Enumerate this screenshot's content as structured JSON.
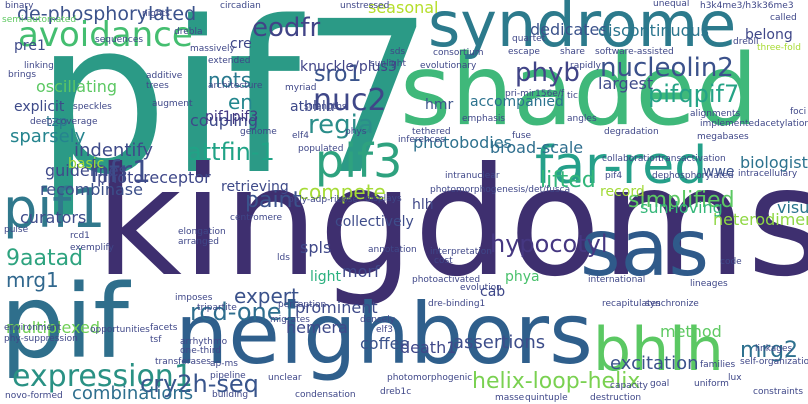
{
  "words": [
    {
      "text": "pif7",
      "color": "#2b9a86"
    },
    {
      "text": "kingdoms",
      "color": "#3e2f6f"
    },
    {
      "text": "shaded",
      "color": "#3fb87a"
    },
    {
      "text": "pif",
      "color": "#2f6f8c"
    },
    {
      "text": "neighbors",
      "color": "#2f5f8c"
    },
    {
      "text": "syndrome",
      "color": "#2c7a8c"
    },
    {
      "text": "sas",
      "color": "#2f5a8a"
    },
    {
      "text": "far-red",
      "color": "#25a08a"
    },
    {
      "text": "bhlh",
      "color": "#5bc863"
    },
    {
      "text": "pif1",
      "color": "#30788c"
    },
    {
      "text": "avoidance",
      "color": "#44be70"
    },
    {
      "text": "pif3",
      "color": "#2ea27f"
    },
    {
      "text": "expression1",
      "color": "#2a9184"
    },
    {
      "text": "nucleolin2",
      "color": "#3b518b"
    },
    {
      "text": "pifqpif7",
      "color": "#25a386"
    },
    {
      "text": "nuc2",
      "color": "#3f4788"
    },
    {
      "text": "phyb",
      "color": "#414487"
    },
    {
      "text": "regia",
      "color": "#2b8d8a"
    },
    {
      "text": "hfr1",
      "color": "#3d4e8a"
    },
    {
      "text": "attfin-1",
      "color": "#20a386"
    },
    {
      "text": "eodfr",
      "color": "#414487"
    },
    {
      "text": "de-phosphorylated",
      "color": "#3b528b"
    },
    {
      "text": "hypocotyl",
      "color": "#453781"
    },
    {
      "text": "rcd-one1",
      "color": "#2e6e8e"
    },
    {
      "text": "expert",
      "color": "#3b528b"
    },
    {
      "text": "cry2h-seq",
      "color": "#39558c"
    },
    {
      "text": "helix-loop-helix",
      "color": "#7ad151"
    },
    {
      "text": "simplified",
      "color": "#5cc863"
    },
    {
      "text": "mrg2",
      "color": "#2d708e"
    },
    {
      "text": "excitation",
      "color": "#3b528b"
    },
    {
      "text": "9aatad",
      "color": "#2ea37f"
    },
    {
      "text": "mrg1",
      "color": "#31688e"
    },
    {
      "text": "sro1",
      "color": "#3a548c"
    },
    {
      "text": "nots",
      "color": "#29798e"
    },
    {
      "text": "en",
      "color": "#24878e"
    },
    {
      "text": "compete",
      "color": "#a5db36"
    },
    {
      "text": "paint",
      "color": "#3b528b"
    },
    {
      "text": "lifted",
      "color": "#32b67a"
    },
    {
      "text": "indentify",
      "color": "#3e4a89"
    },
    {
      "text": "combinations",
      "color": "#2e6f8e"
    },
    {
      "text": "assertions",
      "color": "#3d4d8a"
    },
    {
      "text": "sparsely",
      "color": "#25848e"
    },
    {
      "text": "recombinase",
      "color": "#3c4f8a"
    },
    {
      "text": "guidelines",
      "color": "#3e4989"
    },
    {
      "text": "method",
      "color": "#5ec962"
    },
    {
      "text": "photobodies",
      "color": "#2d718e"
    },
    {
      "text": "visualizing",
      "color": "#2a768e"
    },
    {
      "text": "biologist",
      "color": "#2c728e"
    },
    {
      "text": "broad-scale",
      "color": "#2e6e8e"
    },
    {
      "text": "heterodimerization",
      "color": "#8fd744"
    },
    {
      "text": "coupling",
      "color": "#3e4989"
    },
    {
      "text": "seasonal",
      "color": "#b5de2b"
    },
    {
      "text": "dedicates",
      "color": "#3b528b"
    },
    {
      "text": "discontinuous",
      "color": "#2b758e"
    },
    {
      "text": "largest",
      "color": "#3e4a89"
    },
    {
      "text": "coffee",
      "color": "#3b528b"
    },
    {
      "text": "hemera",
      "color": "#3e4989"
    },
    {
      "text": "death1",
      "color": "#3f4788"
    },
    {
      "text": "sun-loving",
      "color": "#35b779"
    },
    {
      "text": "prominent",
      "color": "#3e4a89"
    },
    {
      "text": "photoreceptor",
      "color": "#3f4889"
    },
    {
      "text": "oscillating",
      "color": "#5cc863"
    },
    {
      "text": "multiplexed",
      "color": "#70cf57"
    },
    {
      "text": "curators",
      "color": "#3e4c8a"
    },
    {
      "text": "spls",
      "color": "#3f4788"
    },
    {
      "text": "morf",
      "color": "#3f4788"
    },
    {
      "text": "atbhlh",
      "color": "#3e4989"
    },
    {
      "text": "knuckle/plus3",
      "color": "#414487"
    },
    {
      "text": "hmr",
      "color": "#3b528b"
    },
    {
      "text": "pif1pif3",
      "color": "#443983"
    },
    {
      "text": "cre",
      "color": "#3f4788"
    },
    {
      "text": "pre1",
      "color": "#3e4a89"
    },
    {
      "text": "basic",
      "color": "#a0da39"
    },
    {
      "text": "explicit",
      "color": "#3e4a89"
    },
    {
      "text": "accompanied",
      "color": "#2c728e"
    },
    {
      "text": "collectively",
      "color": "#3e4c8a"
    },
    {
      "text": "light",
      "color": "#2ab07f"
    },
    {
      "text": "cab",
      "color": "#3f4889"
    },
    {
      "text": "phya",
      "color": "#4ac16d"
    },
    {
      "text": "hlh",
      "color": "#3f4788"
    },
    {
      "text": "record",
      "color": "#a2da37"
    },
    {
      "text": "wwe",
      "color": "#3b528b"
    },
    {
      "text": "belong",
      "color": "#3f4788"
    },
    {
      "text": "retrieving",
      "color": "#3e4a89"
    },
    {
      "text": "tzp",
      "color": "#2a778e"
    },
    {
      "text": "unequal",
      "color": "#3f4788"
    },
    {
      "text": "circadian",
      "color": "#3e4989"
    },
    {
      "text": "unstressed",
      "color": "#3f4788"
    },
    {
      "text": "nights",
      "color": "#3f4788"
    },
    {
      "text": "drebla",
      "color": "#3f4788"
    },
    {
      "text": "massively",
      "color": "#3f4788"
    },
    {
      "text": "extended",
      "color": "#3f4788"
    },
    {
      "text": "sunlight",
      "color": "#3f4788"
    },
    {
      "text": "sds",
      "color": "#3f4788"
    },
    {
      "text": "consortium",
      "color": "#3f4788"
    },
    {
      "text": "escape",
      "color": "#3f4788"
    },
    {
      "text": "share",
      "color": "#3f4788"
    },
    {
      "text": "software-assisted",
      "color": "#3f4788"
    },
    {
      "text": "drebli",
      "color": "#3f4788"
    },
    {
      "text": "three-fold",
      "color": "#a8db34"
    },
    {
      "text": "called",
      "color": "#3f4788"
    },
    {
      "text": "binary",
      "color": "#3f4788"
    },
    {
      "text": "semi-automated",
      "color": "#5ec962"
    },
    {
      "text": "sequences",
      "color": "#3f4788"
    },
    {
      "text": "additive",
      "color": "#3f4788"
    },
    {
      "text": "trees",
      "color": "#3f4788"
    },
    {
      "text": "augment",
      "color": "#3f4788"
    },
    {
      "text": "architecture",
      "color": "#3f4788"
    },
    {
      "text": "myriad",
      "color": "#3f4788"
    },
    {
      "text": "strengths",
      "color": "#3f4788"
    },
    {
      "text": "elf4",
      "color": "#3f4788"
    },
    {
      "text": "phys",
      "color": "#3f4788"
    },
    {
      "text": "evolutionary",
      "color": "#3f4788"
    },
    {
      "text": "quartet",
      "color": "#3f4788"
    },
    {
      "text": "rapidly",
      "color": "#3f4788"
    },
    {
      "text": "tic",
      "color": "#3f4788"
    },
    {
      "text": "emphasis",
      "color": "#3f4788"
    },
    {
      "text": "pri-mir156e/f",
      "color": "#3f4788"
    },
    {
      "text": "angles",
      "color": "#3f4788"
    },
    {
      "text": "alignments",
      "color": "#3f4788"
    },
    {
      "text": "implemented",
      "color": "#3f4788"
    },
    {
      "text": "foci",
      "color": "#3f4788"
    },
    {
      "text": "acetylations",
      "color": "#3f4788"
    },
    {
      "text": "megabases",
      "color": "#3f4788"
    },
    {
      "text": "degradation",
      "color": "#3f4788"
    },
    {
      "text": "fuse",
      "color": "#3f4788"
    },
    {
      "text": "tethered",
      "color": "#3f4788"
    },
    {
      "text": "inferences",
      "color": "#3f4788"
    },
    {
      "text": "populated",
      "color": "#3f4788"
    },
    {
      "text": "genome",
      "color": "#3f4788"
    },
    {
      "text": "collaboration",
      "color": "#3f4788"
    },
    {
      "text": "transactivation",
      "color": "#3f4788"
    },
    {
      "text": "intranuclear",
      "color": "#3f4788"
    },
    {
      "text": "pif4",
      "color": "#3f4788"
    },
    {
      "text": "dephosphorylated",
      "color": "#3f4788"
    },
    {
      "text": "intracellulary",
      "color": "#3f4788"
    },
    {
      "text": "photomorphogenesis/det/fusca",
      "color": "#3f4788"
    },
    {
      "text": "poly-adp-ribose",
      "color": "#3f4788"
    },
    {
      "text": "displays",
      "color": "#3f4788"
    },
    {
      "text": "centromere",
      "color": "#3f4788"
    },
    {
      "text": "elongation",
      "color": "#3f4788"
    },
    {
      "text": "arranged",
      "color": "#3f4788"
    },
    {
      "text": "lds",
      "color": "#3f4788"
    },
    {
      "text": "annotation",
      "color": "#3f4788"
    },
    {
      "text": "interpretation",
      "color": "#3f4788"
    },
    {
      "text": "cost",
      "color": "#3f4788"
    },
    {
      "text": "photoactivated",
      "color": "#3f4788"
    },
    {
      "text": "evolution",
      "color": "#3f4788"
    },
    {
      "text": "international",
      "color": "#3f4788"
    },
    {
      "text": "lineages",
      "color": "#3f4788"
    },
    {
      "text": "synchronize",
      "color": "#3f4788"
    },
    {
      "text": "recapitulates",
      "color": "#3f4788"
    },
    {
      "text": "code",
      "color": "#3f4788"
    },
    {
      "text": "imposes",
      "color": "#3f4788"
    },
    {
      "text": "tripartite",
      "color": "#3f4788"
    },
    {
      "text": "perception",
      "color": "#3f4788"
    },
    {
      "text": "migrates",
      "color": "#3f4788"
    },
    {
      "text": "densely",
      "color": "#3f4788"
    },
    {
      "text": "elf3",
      "color": "#3f4788"
    },
    {
      "text": "dre-binding1",
      "color": "#3f4788"
    },
    {
      "text": "rcd1",
      "color": "#3f4788"
    },
    {
      "text": "exemplify",
      "color": "#3f4788"
    },
    {
      "text": "pulse",
      "color": "#3f4788"
    },
    {
      "text": "environment",
      "color": "#3f4788"
    },
    {
      "text": "opportunities",
      "color": "#3f4788"
    },
    {
      "text": "facets",
      "color": "#3f4788"
    },
    {
      "text": "tsf",
      "color": "#3f4788"
    },
    {
      "text": "arrhythmo",
      "color": "#3f4788"
    },
    {
      "text": "one-third",
      "color": "#3f4788"
    },
    {
      "text": "ap-ms",
      "color": "#3f4788"
    },
    {
      "text": "phy-suppression",
      "color": "#3f4788"
    },
    {
      "text": "transferases",
      "color": "#3f4788"
    },
    {
      "text": "pipeline",
      "color": "#3f4788"
    },
    {
      "text": "unclear",
      "color": "#3f4788"
    },
    {
      "text": "building",
      "color": "#3f4788"
    },
    {
      "text": "condensation",
      "color": "#3f4788"
    },
    {
      "text": "dreb1c",
      "color": "#3f4788"
    },
    {
      "text": "photomorphogenic",
      "color": "#3f4788"
    },
    {
      "text": "masse",
      "color": "#3f4788"
    },
    {
      "text": "quintuple",
      "color": "#3f4788"
    },
    {
      "text": "destruction",
      "color": "#3f4788"
    },
    {
      "text": "capacity",
      "color": "#3f4788"
    },
    {
      "text": "goal",
      "color": "#3f4788"
    },
    {
      "text": "uniform",
      "color": "#3f4788"
    },
    {
      "text": "lux",
      "color": "#3f4788"
    },
    {
      "text": "families",
      "color": "#3f4788"
    },
    {
      "text": "linkages",
      "color": "#3f4788"
    },
    {
      "text": "self-organization",
      "color": "#3f4788"
    },
    {
      "text": "constraints",
      "color": "#3f4788"
    },
    {
      "text": "novo-formed",
      "color": "#3f4788"
    },
    {
      "text": "linking",
      "color": "#3f4788"
    },
    {
      "text": "brings",
      "color": "#3f4788"
    },
    {
      "text": "speckles",
      "color": "#3f4788"
    },
    {
      "text": "deep-coverage",
      "color": "#3f4788"
    },
    {
      "text": "h3k4me3/h3k36me3",
      "color": "#3f4788"
    }
  ]
}
